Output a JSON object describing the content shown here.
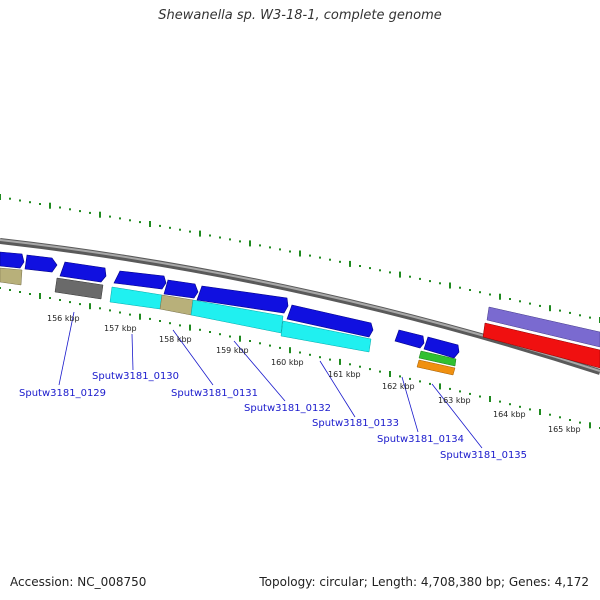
{
  "title": "Shewanella sp. W3-18-1, complete genome",
  "footer": {
    "accession": "Accession: NC_008750",
    "topology": "Topology: circular; Length: 4,708,380 bp; Genes: 4,172"
  },
  "kbp_labels": [
    "156 kbp",
    "157 kbp",
    "158 kbp",
    "159 kbp",
    "160 kbp",
    "161 kbp",
    "162 kbp",
    "163 kbp",
    "164 kbp",
    "165 kbp"
  ],
  "gene_labels": [
    "Sputw3181_0129",
    "Sputw3181_0130",
    "Sputw3181_0131",
    "Sputw3181_0132",
    "Sputw3181_0133",
    "Sputw3181_0134",
    "Sputw3181_0135"
  ],
  "colors": {
    "cds": "#1010e0",
    "backbone": "#808080",
    "ticks": "#1f8a1f",
    "cyan": "#20f0f0",
    "khaki": "#b8b07a",
    "grey_feature": "#6a6a6a",
    "purple": "#7a6ad0",
    "red": "#f01010",
    "green": "#30c030",
    "orange": "#f09010",
    "label": "#1a1acc"
  }
}
